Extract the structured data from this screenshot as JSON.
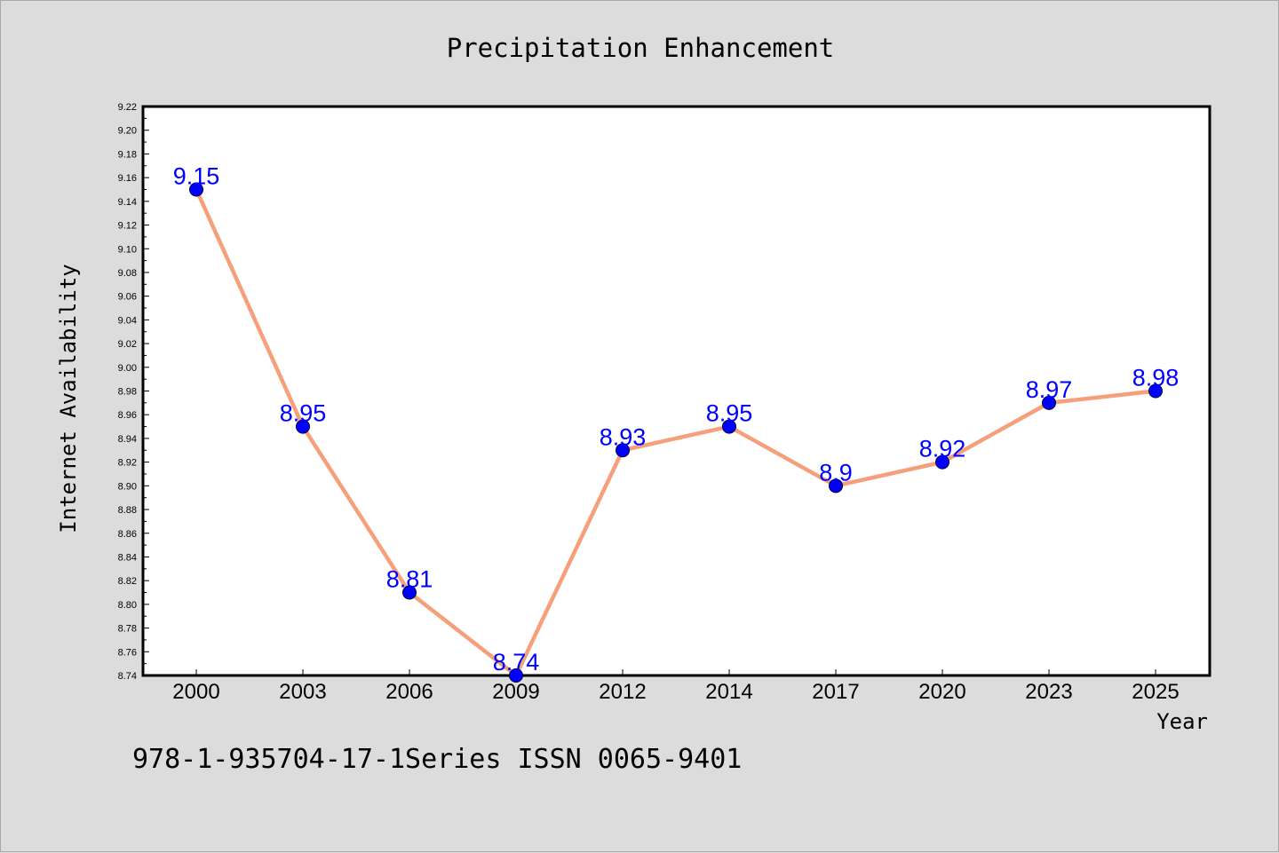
{
  "chart_data": {
    "type": "line",
    "title": "Precipitation Enhancement",
    "xlabel": "Year",
    "ylabel": "Internet Availability",
    "categories": [
      "2000",
      "2003",
      "2006",
      "2009",
      "2012",
      "2014",
      "2017",
      "2020",
      "2023",
      "2025"
    ],
    "values": [
      9.15,
      8.95,
      8.81,
      8.74,
      8.93,
      8.95,
      8.9,
      8.92,
      8.97,
      8.98
    ],
    "data_labels": [
      "9.15",
      "8.95",
      "8.81",
      "8.74",
      "8.93",
      "8.95",
      "8.9",
      "8.92",
      "8.97",
      "8.98"
    ],
    "ylim": [
      8.74,
      9.22
    ],
    "yticks": [
      "8.74",
      "8.76",
      "8.78",
      "8.80",
      "8.82",
      "8.84",
      "8.86",
      "8.88",
      "8.90",
      "8.92",
      "8.94",
      "8.96",
      "8.98",
      "9.00",
      "9.02",
      "9.04",
      "9.06",
      "9.08",
      "9.10",
      "9.12",
      "9.14",
      "9.16",
      "9.18",
      "9.20",
      "9.22"
    ],
    "grid": false,
    "legend": "none",
    "colors": {
      "line": "#f5a07a",
      "marker": "#0000ff",
      "label": "#0000ff",
      "background": "#dcdcdc",
      "plot_background": "#ffffff"
    }
  },
  "footer": "978-1-935704-17-1Series ISSN 0065-9401"
}
